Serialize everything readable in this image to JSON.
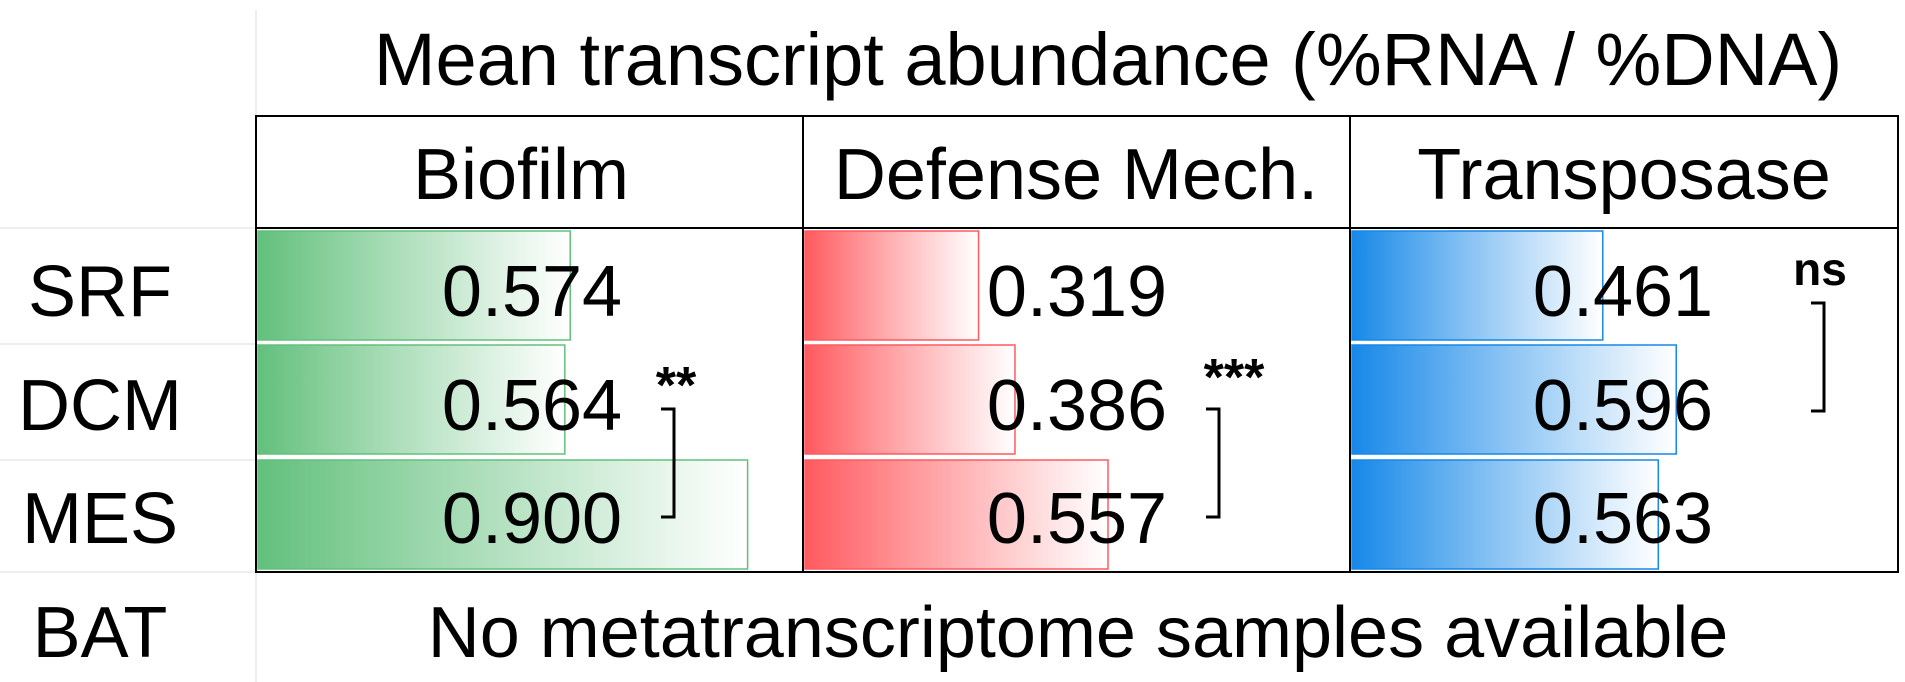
{
  "chart_data": {
    "type": "table",
    "title": "Mean transcript abundance (%RNA / %DNA)",
    "columns": [
      "Biofilm",
      "Defense Mech.",
      "Transposase"
    ],
    "rows": [
      "SRF",
      "DCM",
      "MES",
      "BAT"
    ],
    "series": [
      {
        "name": "Biofilm",
        "color": "#62c07c",
        "values": [
          0.574,
          0.564,
          0.9
        ]
      },
      {
        "name": "Defense Mech.",
        "color": "#ff5a5f",
        "values": [
          0.319,
          0.386,
          0.557
        ]
      },
      {
        "name": "Transposase",
        "color": "#1688e8",
        "values": [
          0.461,
          0.596,
          0.563
        ]
      }
    ],
    "value_labels": [
      [
        "0.574",
        "0.319",
        "0.461"
      ],
      [
        "0.564",
        "0.386",
        "0.596"
      ],
      [
        "0.900",
        "0.557",
        "0.563"
      ]
    ],
    "xlim": [
      0,
      1
    ],
    "significance": [
      {
        "column": "Biofilm",
        "from": "DCM",
        "to": "MES",
        "label": "**"
      },
      {
        "column": "Defense Mech.",
        "from": "DCM",
        "to": "MES",
        "label": "***"
      },
      {
        "column": "Transposase",
        "from": "SRF",
        "to": "DCM",
        "label": "ns"
      }
    ],
    "note": "No metatranscriptome samples available"
  }
}
